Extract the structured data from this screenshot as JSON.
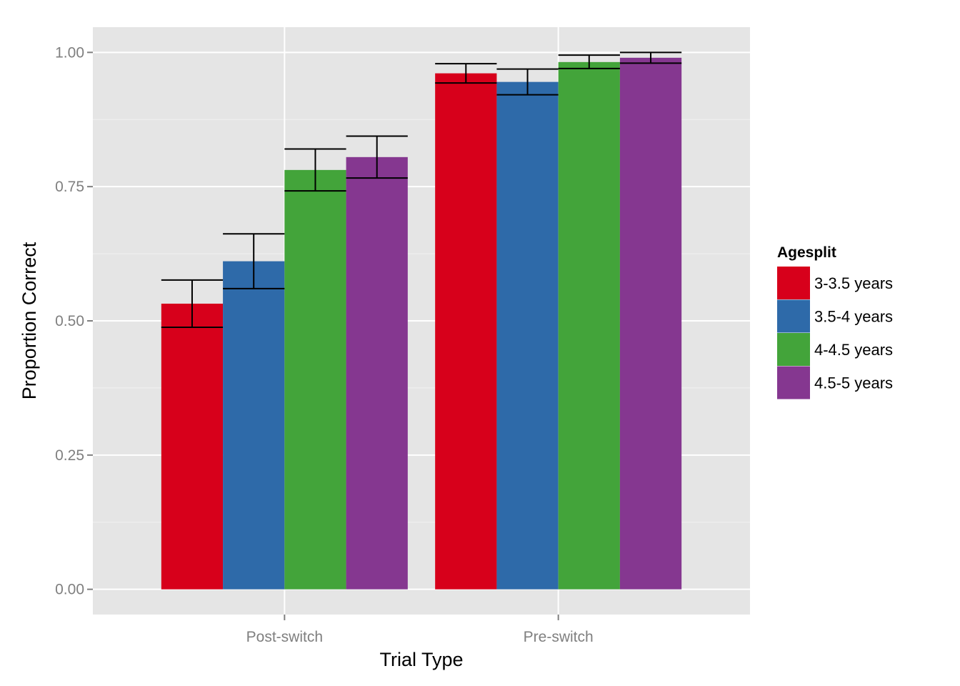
{
  "chart_data": {
    "type": "bar",
    "title": "",
    "xlabel": "Trial Type",
    "ylabel": "Proportion Correct",
    "categories": [
      "Post-switch",
      "Pre-switch"
    ],
    "ylim": [
      -0.047,
      1.047
    ],
    "yticks": [
      0.0,
      0.25,
      0.5,
      0.75,
      1.0
    ],
    "ytick_labels": [
      "0.00",
      "0.25",
      "0.50",
      "0.75",
      "1.00"
    ],
    "grid": true,
    "legend": {
      "title": "Agesplit",
      "position": "right"
    },
    "series": [
      {
        "name": "3-3.5 years",
        "color": "#d7001b",
        "values": [
          0.532,
          0.961
        ],
        "err_low": [
          0.488,
          0.943
        ],
        "err_high": [
          0.576,
          0.979
        ]
      },
      {
        "name": "3.5-4 years",
        "color": "#2e6aa9",
        "values": [
          0.611,
          0.945
        ],
        "err_low": [
          0.56,
          0.921
        ],
        "err_high": [
          0.662,
          0.969
        ]
      },
      {
        "name": "4-4.5 years",
        "color": "#43a43a",
        "values": [
          0.781,
          0.982
        ],
        "err_low": [
          0.742,
          0.97
        ],
        "err_high": [
          0.82,
          0.995
        ]
      },
      {
        "name": "4.5-5 years",
        "color": "#853790",
        "values": [
          0.805,
          0.99
        ],
        "err_low": [
          0.766,
          0.98
        ],
        "err_high": [
          0.844,
          1.0
        ]
      }
    ]
  }
}
